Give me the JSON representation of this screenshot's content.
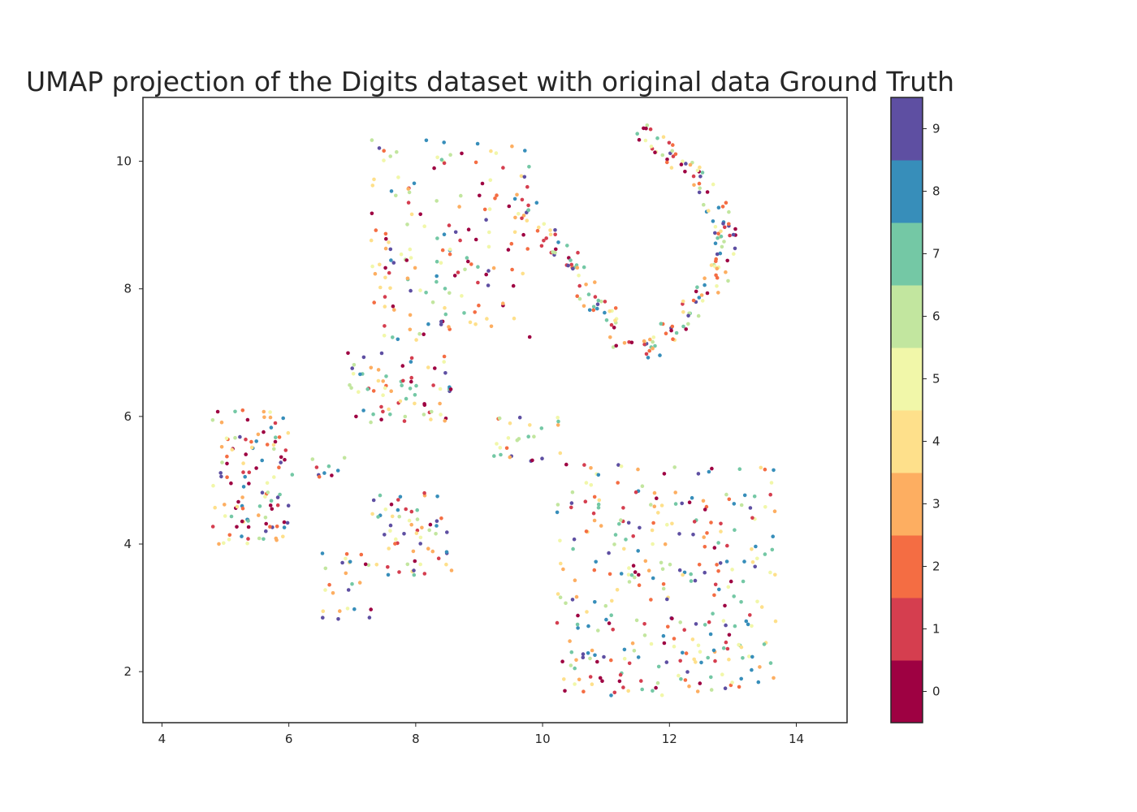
{
  "chart_data": {
    "type": "scatter",
    "title": "UMAP projection of the Digits dataset with original data Ground Truth",
    "xlabel": "",
    "ylabel": "",
    "xlim": [
      3.7,
      14.8
    ],
    "ylim": [
      1.2,
      11.0
    ],
    "xticks": [
      4,
      6,
      8,
      10,
      12,
      14
    ],
    "yticks": [
      2,
      4,
      6,
      8,
      10
    ],
    "grid": false,
    "colorbar": {
      "ticks": [
        0,
        1,
        2,
        3,
        4,
        5,
        6,
        7,
        8,
        9
      ],
      "colors": [
        "#9e0142",
        "#d53e4f",
        "#f46d43",
        "#fdae61",
        "#fee08b",
        "#f1f7a9",
        "#c2e69f",
        "#74c8a5",
        "#378eba",
        "#5e4fa2"
      ]
    },
    "clusters": [
      {
        "label": "upper-left arc",
        "x_range": [
          7.3,
          9.8
        ],
        "y_range": [
          7.2,
          10.4
        ],
        "approx_points": 160
      },
      {
        "label": "diagonal band",
        "x_range": [
          9.6,
          11.3
        ],
        "y_range": [
          7.2,
          9.5
        ],
        "approx_points": 70
      },
      {
        "label": "right arc",
        "x_range": [
          11.2,
          13.1
        ],
        "y_range": [
          6.9,
          10.6
        ],
        "approx_points": 130
      },
      {
        "label": "middle-left cluster",
        "x_range": [
          6.9,
          8.6
        ],
        "y_range": [
          5.9,
          7.0
        ],
        "approx_points": 70
      },
      {
        "label": "left cluster",
        "x_range": [
          4.8,
          6.0
        ],
        "y_range": [
          4.0,
          6.1
        ],
        "approx_points": 110
      },
      {
        "label": "left bridge",
        "x_range": [
          6.0,
          6.9
        ],
        "y_range": [
          5.0,
          5.4
        ],
        "approx_points": 10
      },
      {
        "label": "lower-left cluster",
        "x_range": [
          6.5,
          7.3
        ],
        "y_range": [
          2.8,
          3.9
        ],
        "approx_points": 25
      },
      {
        "label": "lower-middle cluster",
        "x_range": [
          7.3,
          8.6
        ],
        "y_range": [
          3.5,
          4.8
        ],
        "approx_points": 60
      },
      {
        "label": "center small cluster",
        "x_range": [
          9.2,
          10.3
        ],
        "y_range": [
          5.3,
          6.0
        ],
        "approx_points": 25
      },
      {
        "label": "lower-right cluster",
        "x_range": [
          10.2,
          13.7
        ],
        "y_range": [
          1.6,
          5.3
        ],
        "approx_points": 300
      }
    ]
  }
}
